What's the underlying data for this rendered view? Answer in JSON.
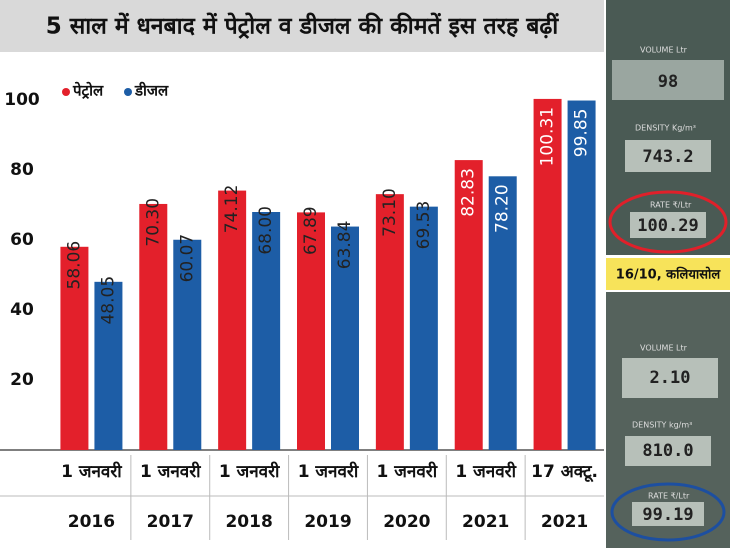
{
  "chart_data": {
    "type": "bar",
    "title": "5 साल में धनबाद में पेट्रोल व डीजल की कीमतें इस तरह बढ़ीं",
    "categories": [
      [
        "1 जनवरी",
        "2016"
      ],
      [
        "1 जनवरी",
        "2017"
      ],
      [
        "1 जनवरी",
        "2018"
      ],
      [
        "1 जनवरी",
        "2019"
      ],
      [
        "1 जनवरी",
        "2020"
      ],
      [
        "1 जनवरी",
        "2021"
      ],
      [
        "17 अक्टू.",
        "2021"
      ]
    ],
    "series": [
      {
        "name": "पेट्रोल",
        "color": "#e3202b",
        "values": [
          58.06,
          70.3,
          74.12,
          67.89,
          73.1,
          82.83,
          100.31
        ],
        "value_labels": [
          "58.06",
          "70.30",
          "74.12",
          "67.89",
          "73.10",
          "82.83",
          "100.31"
        ]
      },
      {
        "name": "डीजल",
        "color": "#1d5da6",
        "values": [
          48.05,
          60.07,
          68.0,
          63.84,
          69.53,
          78.2,
          99.85
        ],
        "value_labels": [
          "48.05",
          "60.07",
          "68.00",
          "63.84",
          "69.53",
          "78.20",
          "99.85"
        ]
      }
    ],
    "ylim": [
      0,
      110
    ],
    "yticks": [
      20,
      40,
      60,
      80,
      100
    ],
    "legend": "top-left"
  },
  "photos": {
    "caption": "16/10, कलियासोल",
    "top_panel": {
      "volume_label": "VOLUME Ltr",
      "volume": "98",
      "density_label": "DENSITY Kg/m³",
      "density": "743.2",
      "rate_label": "RATE ₹/Ltr",
      "rate": "100.29"
    },
    "bottom_panel": {
      "volume_label": "VOLUME Ltr",
      "volume": "2.10",
      "density_label": "DENSITY kg/m³",
      "density": "810.0",
      "rate_label": "RATE ₹/Ltr",
      "rate": "99.19"
    }
  }
}
